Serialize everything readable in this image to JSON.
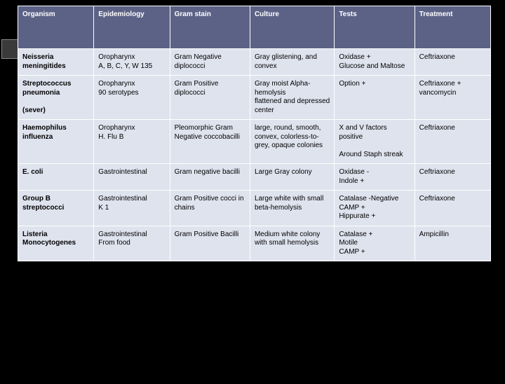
{
  "columns": [
    "Organism",
    "Epidemiology",
    "Gram stain",
    "Culture",
    "Tests",
    "Treatment"
  ],
  "rows": [
    [
      "Neisseria meningitides",
      "Oropharynx\nA, B, C, Y, W 135",
      "Gram Negative diplococci",
      "Gray  glistening, and convex",
      "Oxidase +\nGlucose and Maltose",
      "Ceftriaxone"
    ],
    [
      "Streptococcus pneumonia\n\n(sever)",
      "Oropharynx\n 90 serotypes",
      "Gram Positive diplococci",
      "Gray moist Alpha-hemolysis\n flattened and depressed center",
      "Option +",
      "Ceftriaxone + vancomycin"
    ],
    [
      "Haemophilus influenza",
      "Oropharynx\nH. Flu B",
      "Pleomorphic Gram Negative coccobacilli",
      "large, round, smooth, convex, colorless-to-grey, opaque colonies",
      "X and V factors positive\n\nAround Staph streak",
      "Ceftriaxone"
    ],
    [
      "E. coli",
      "Gastrointestinal",
      "Gram negative bacilli",
      "Large Gray colony",
      "Oxidase -\nIndole +",
      "Ceftriaxone"
    ],
    [
      "Group B streptococci",
      "Gastrointestinal\nK 1",
      "Gram Positive cocci in chains",
      "Large white with small beta-hemolysis",
      "Catalase -Negative\nCAMP +\nHippurate +",
      "Ceftriaxone"
    ],
    [
      "Listeria Monocytogenes",
      "Gastrointestinal\nFrom food",
      "Gram Positive Bacilli",
      "Medium white colony with small hemolysis",
      "Catalase +\nMotile\nCAMP +",
      "Ampicillin"
    ]
  ],
  "styles": {
    "header_bg": "#5c6286",
    "header_fg": "#ffffff",
    "cell_bg": "#dfe3ee",
    "cell_fg": "#000000",
    "border_color": "#ffffff",
    "font_size": 10
  }
}
